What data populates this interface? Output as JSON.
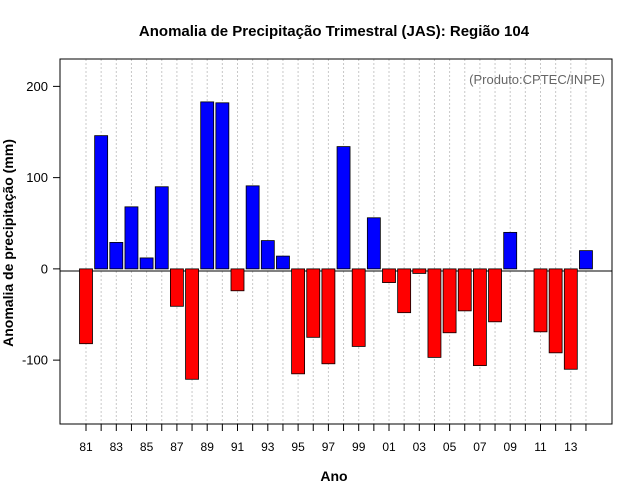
{
  "chart_data": {
    "type": "bar",
    "title": "Anomalia de Precipitação Trimestral (JAS): Região 104",
    "xlabel": "Ano",
    "ylabel": "Anomalia de precipitação (mm)",
    "annotation": "(Produto:CPTEC/INPE)",
    "ylim": [
      -170,
      230
    ],
    "yticks": [
      -100,
      0,
      100,
      200
    ],
    "ytick_labels": [
      "-100",
      "0",
      "100",
      "200"
    ],
    "categories": [
      "81",
      "82",
      "83",
      "84",
      "85",
      "86",
      "87",
      "88",
      "89",
      "90",
      "91",
      "92",
      "93",
      "94",
      "95",
      "96",
      "97",
      "98",
      "99",
      "00",
      "01",
      "02",
      "03",
      "04",
      "05",
      "06",
      "07",
      "08",
      "09",
      "10",
      "11",
      "12",
      "13",
      "14"
    ],
    "xtick_labels": [
      "81",
      "",
      "83",
      "",
      "85",
      "",
      "87",
      "",
      "89",
      "",
      "91",
      "",
      "93",
      "",
      "95",
      "",
      "97",
      "",
      "99",
      "",
      "01",
      "",
      "03",
      "",
      "05",
      "",
      "07",
      "",
      "09",
      "",
      "11",
      "",
      "13",
      ""
    ],
    "values": [
      -82,
      146,
      29,
      68,
      12,
      90,
      -41,
      -121,
      183,
      182,
      -24,
      91,
      31,
      14,
      -115,
      -75,
      -104,
      134,
      -85,
      56,
      -15,
      -48,
      -5,
      -97,
      -70,
      -46,
      -106,
      -58,
      40,
      0,
      -69,
      -92,
      -110,
      20
    ],
    "positive_color": "#0000ff",
    "negative_color": "#ff0000",
    "grid": "vertical dotted",
    "annotation_color": "#666666"
  }
}
